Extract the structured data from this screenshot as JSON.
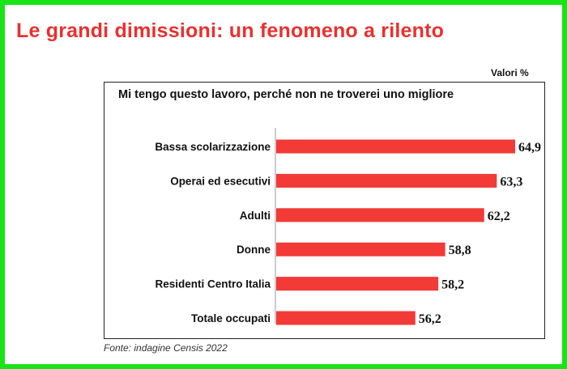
{
  "title": "Le grandi dimissioni: un fenomeno a rilento",
  "unit_label": "Valori %",
  "source": "Fonte: indagine Censis 2022",
  "colors": {
    "frame": "#18e418",
    "title": "#e8312f",
    "bar": "#f23a36"
  },
  "chart_data": {
    "type": "bar",
    "orientation": "horizontal",
    "title": "Mi tengo questo lavoro, perché non ne troverei uno migliore",
    "categories": [
      "Bassa scolarizzazione",
      "Operai ed esecutivi",
      "Adulti",
      "Donne",
      "Residenti Centro Italia",
      "Totale occupati"
    ],
    "values": [
      64.9,
      63.3,
      62.2,
      58.8,
      58.2,
      56.2
    ],
    "value_labels": [
      "64,9",
      "63,3",
      "62,2",
      "58,8",
      "58,2",
      "56,2"
    ],
    "xlim": [
      44.0,
      64.9
    ],
    "grid": false
  }
}
